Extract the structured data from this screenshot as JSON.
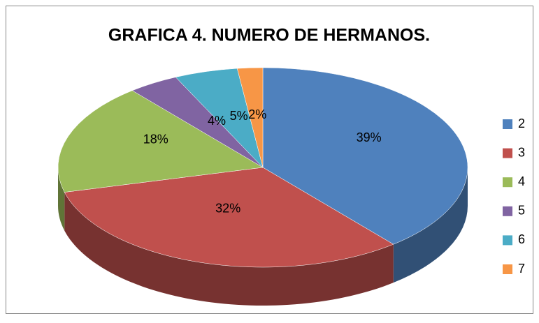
{
  "chart_data": {
    "type": "pie",
    "title": "GRAFICA 4. NUMERO DE HERMANOS.",
    "categories": [
      "2",
      "3",
      "4",
      "5",
      "6",
      "7"
    ],
    "values": [
      39,
      32,
      18,
      4,
      5,
      2
    ],
    "value_labels": [
      "39%",
      "32%",
      "18%",
      "4%",
      "5%",
      "2%"
    ],
    "colors": [
      "#4f81bd",
      "#c0504d",
      "#9bbb59",
      "#8064a2",
      "#4bacc6",
      "#f79646"
    ],
    "legend": "right"
  }
}
